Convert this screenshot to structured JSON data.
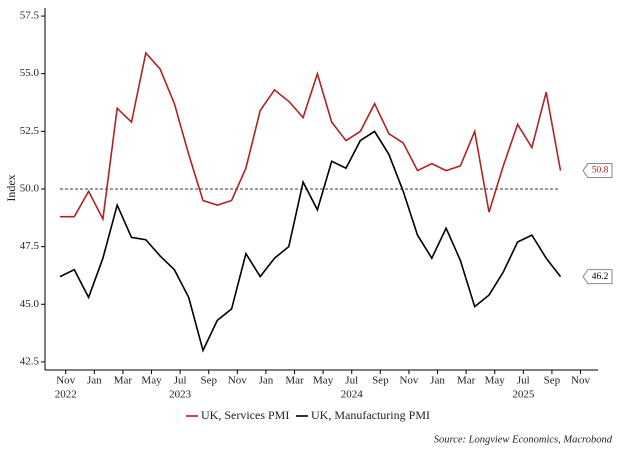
{
  "chart_data": {
    "type": "line",
    "y_label": "Index",
    "x": [
      "2022-10",
      "2022-11",
      "2022-12",
      "2023-01",
      "2023-02",
      "2023-03",
      "2023-04",
      "2023-05",
      "2023-06",
      "2023-07",
      "2023-08",
      "2023-09",
      "2023-10",
      "2023-11",
      "2023-12",
      "2024-01",
      "2024-02",
      "2024-03",
      "2024-04",
      "2024-05",
      "2024-06",
      "2024-07",
      "2024-08",
      "2024-09",
      "2024-10",
      "2024-11",
      "2024-12",
      "2025-01",
      "2025-02",
      "2025-03",
      "2025-04",
      "2025-05",
      "2025-06",
      "2025-07",
      "2025-08",
      "2025-09"
    ],
    "series": [
      {
        "name": "UK, Services PMI",
        "color": "#b22222",
        "values": [
          48.8,
          48.8,
          49.9,
          48.7,
          53.5,
          52.9,
          55.9,
          55.2,
          53.7,
          51.5,
          49.5,
          49.3,
          49.5,
          50.9,
          53.4,
          54.3,
          53.8,
          53.1,
          55.0,
          52.9,
          52.1,
          52.5,
          53.7,
          52.4,
          52.0,
          50.8,
          51.1,
          50.8,
          51.0,
          52.5,
          49.0,
          51.0,
          52.8,
          51.8,
          54.2,
          50.8
        ]
      },
      {
        "name": "UK, Manufacturing PMI",
        "color": "#000000",
        "values": [
          46.2,
          46.5,
          45.3,
          47.0,
          49.3,
          47.9,
          47.8,
          47.1,
          46.5,
          45.3,
          43.0,
          44.3,
          44.8,
          47.2,
          46.2,
          47.0,
          47.5,
          50.3,
          49.1,
          51.2,
          50.9,
          52.1,
          52.5,
          51.5,
          49.9,
          48.0,
          47.0,
          48.3,
          46.9,
          44.9,
          45.4,
          46.4,
          47.7,
          48.0,
          47.0,
          46.2
        ]
      }
    ],
    "ylim": [
      42.15,
      57.85
    ],
    "yticks": [
      {
        "value": 42.5,
        "label": "42.5"
      },
      {
        "value": 45,
        "label": "45.0"
      },
      47.5,
      {
        "value": 50,
        "label": "50.0"
      },
      52.5,
      {
        "value": 55,
        "label": "55.0"
      },
      57.5
    ],
    "xticks": [
      {
        "value": "2022-11",
        "label": "Nov"
      },
      {
        "value": "2023-01",
        "label": "Jan"
      },
      {
        "value": "2023-03",
        "label": "Mar"
      },
      {
        "value": "2023-05",
        "label": "May"
      },
      {
        "value": "2023-07",
        "label": "Jul"
      },
      {
        "value": "2023-09",
        "label": "Sep"
      },
      {
        "value": "2023-11",
        "label": "Nov"
      },
      {
        "value": "2024-01",
        "label": "Jan"
      },
      {
        "value": "2024-03",
        "label": "Mar"
      },
      {
        "value": "2024-05",
        "label": "May"
      },
      {
        "value": "2024-07",
        "label": "Jul"
      },
      {
        "value": "2024-09",
        "label": "Sep"
      },
      {
        "value": "2024-11",
        "label": "Nov"
      },
      {
        "value": "2025-01",
        "label": "Jan"
      },
      {
        "value": "2025-03",
        "label": "Mar"
      },
      {
        "value": "2025-05",
        "label": "May"
      },
      {
        "value": "2025-07",
        "label": "Jul"
      },
      {
        "value": "2025-09",
        "label": "Sep"
      },
      {
        "value": "2025-11",
        "label": "Nov"
      }
    ],
    "xtick_years": [
      {
        "value": "2022-11",
        "label": "2022"
      },
      {
        "value": "2023-07",
        "label": "2023"
      },
      {
        "value": "2024-07",
        "label": "2024"
      },
      {
        "value": "2025-07",
        "label": "2025"
      }
    ],
    "reference_line": 50,
    "source": "Source: Longview Economics, Macrobond"
  }
}
